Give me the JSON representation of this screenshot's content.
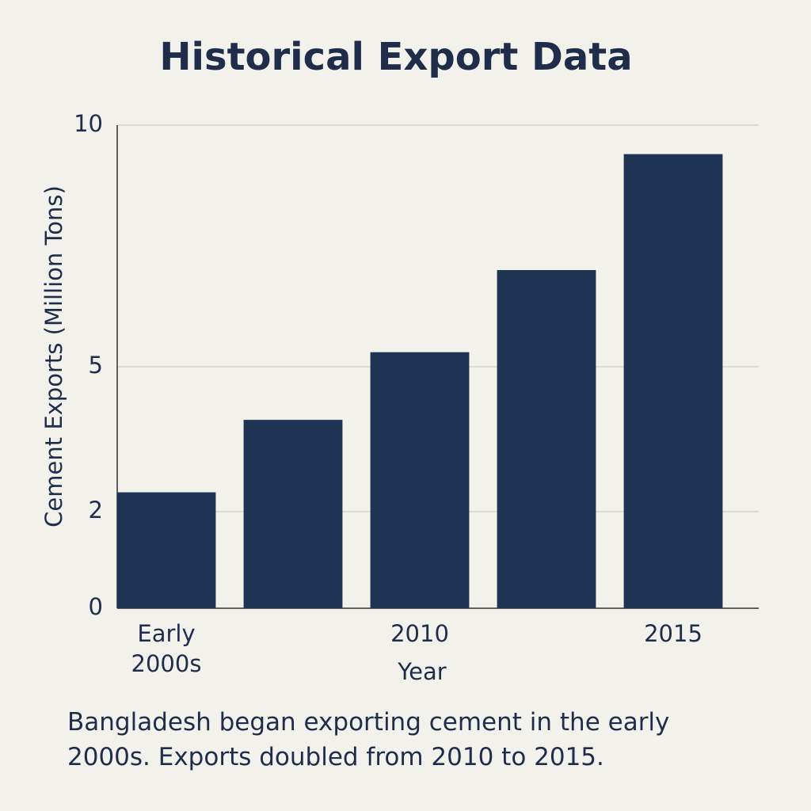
{
  "chart_data": {
    "type": "bar",
    "title": "Historical Export Data",
    "x_label": "Year",
    "y_label": "Cement Exports (Million Tons)",
    "caption": "Bangladesh began exporting cement in the early 2000s. Exports doubled from 2010 to 2015.",
    "categories": [
      "Early 2000s",
      null,
      "2010",
      null,
      "2015"
    ],
    "values": [
      2.4,
      3.9,
      5.3,
      7.0,
      9.4
    ],
    "color": "#1f3352",
    "ylim": [
      0,
      10
    ],
    "yticks": [
      0,
      2,
      5,
      10
    ],
    "grid": true
  }
}
